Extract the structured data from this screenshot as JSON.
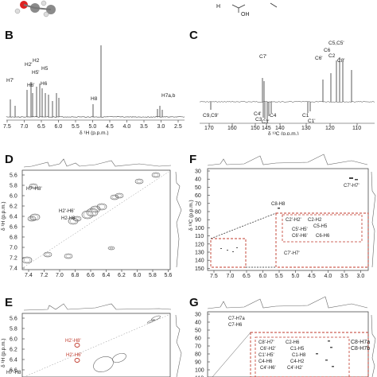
{
  "figure": {
    "panel_labels": [
      "B",
      "C",
      "D",
      "E",
      "F",
      "G"
    ]
  },
  "panel_b": {
    "peaks": [
      "H7'",
      "H2'",
      "H6'",
      "H2",
      "H5'",
      "H5",
      "H6",
      "H8",
      "H7a,b"
    ],
    "ticks": [
      "7.5",
      "7.0",
      "6.5",
      "6.0",
      "5.5",
      "5.0",
      "4.5",
      "4.0",
      "3.5",
      "3.0",
      "2.5"
    ],
    "xlabel": "δ ¹H (p.p.m.)"
  },
  "panel_c": {
    "peaks": [
      "C7'",
      "C6'",
      "C6",
      "C2",
      "C5,C5'",
      "C8'",
      "C9,C9'",
      "C4'",
      "C3",
      "C3'",
      "C4",
      "C1",
      "C1'"
    ],
    "ticks": [
      "170",
      "160",
      "150",
      "145",
      "140",
      "130",
      "120",
      "110"
    ],
    "xlabel": "δ ¹³C (p.p.m.)"
  },
  "panel_d": {
    "yticks": [
      "5.6",
      "5.8",
      "6.0",
      "6.2",
      "6.4",
      "6.6",
      "6.8",
      "7.0",
      "7.2",
      "7.4"
    ],
    "xticks": [
      "7.4",
      "7.2",
      "7.0",
      "6.8",
      "6.6",
      "6.4",
      "6.2",
      "6.0",
      "5.8",
      "5.6"
    ],
    "ylabel": "δ ¹H (p.p.m.)",
    "xlabel": "δ ¹H (p.p.m.)",
    "cross_peaks": [
      "H7'-H8'",
      "H2'-H6'",
      "H2-H6"
    ]
  },
  "panel_e": {
    "yticks": [
      "5.6",
      "5.8",
      "6.0",
      "6.2",
      "6.4",
      "6.6"
    ],
    "ylabel": "δ ¹H (p.p.m.)",
    "cross_peaks": [
      "H2'-H8'",
      "H2'-H6'",
      "H7'-H8"
    ]
  },
  "panel_f": {
    "yticks": [
      "30",
      "40",
      "50",
      "60",
      "70",
      "80",
      "90",
      "100",
      "110",
      "120",
      "130",
      "140",
      "150"
    ],
    "xticks": [
      "7.5",
      "7.0",
      "6.5",
      "6.0",
      "5.5",
      "5.0",
      "4.5",
      "4.0",
      "3.5",
      "3.0"
    ],
    "ylabel": "δ ¹³C (p.p.m.)",
    "xlabel": "δ ¹H (p.p.m.)",
    "top_peaks": [
      "C7'-H7'",
      "C8-H8"
    ],
    "inset_peaks": [
      "C2'-H2'",
      "C2-H2",
      "C5-H5",
      "C5'-H5'",
      "C6'-H6'",
      "C6-H6"
    ],
    "bottom_peaks": [
      "C7'-H7'"
    ]
  },
  "panel_g": {
    "yticks": [
      "30",
      "40",
      "50",
      "60",
      "70",
      "80",
      "90",
      "100",
      "110"
    ],
    "top_peaks": [
      "C7-H7a",
      "C7-H6"
    ],
    "inset_peaks": [
      "C8'-H7'",
      "C2-H6",
      "C6'-H2'",
      "C1-H5",
      "C1'-H5'",
      "C1-H8",
      "C4-H6",
      "C4-H2",
      "C4'-H6'",
      "C4'-H2'"
    ],
    "side_peaks": [
      "C8-H7a",
      "C8-H7b"
    ]
  }
}
